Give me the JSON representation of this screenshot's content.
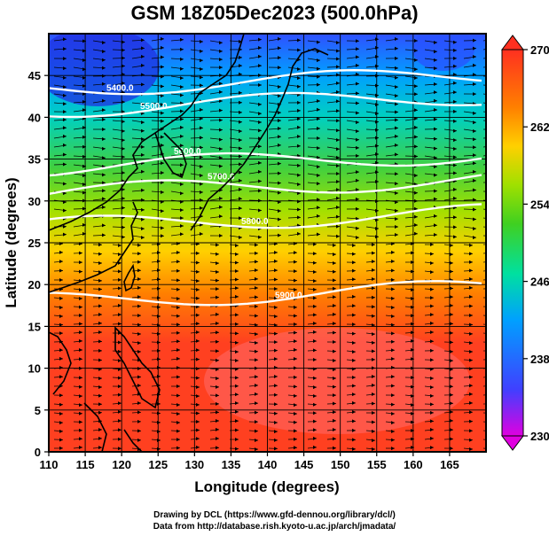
{
  "title": "GSM 18Z05Dec2023 (500.0hPa)",
  "axes": {
    "xlabel": "Longitude (degrees)",
    "ylabel": "Latitude  (degrees)",
    "x_ticks": [
      "110",
      "115",
      "120",
      "125",
      "130",
      "135",
      "140",
      "145",
      "150",
      "155",
      "160",
      "165"
    ],
    "y_ticks": [
      "0",
      "5",
      "10",
      "15",
      "20",
      "25",
      "30",
      "35",
      "40",
      "45"
    ],
    "x_range": [
      110,
      170
    ],
    "y_range": [
      0,
      50
    ]
  },
  "colorbar": {
    "labels": [
      "270",
      "262",
      "254",
      "246",
      "238",
      "230"
    ],
    "range": [
      230,
      270
    ],
    "stops": [
      "#e000e0",
      "#4040ff",
      "#00c0ff",
      "#00e0a0",
      "#40d020",
      "#a0e000",
      "#ffd000",
      "#ff8000",
      "#ff4020",
      "#ff6060"
    ]
  },
  "contours": [
    {
      "label": "5400.0",
      "lat": 43.5
    },
    {
      "label": "5500.0",
      "lat": 41
    },
    {
      "label": "5600.0",
      "lat": 34
    },
    {
      "label": "5700.0",
      "lat": 31
    },
    {
      "label": "5800.0",
      "lat": 27
    },
    {
      "label": "5900.0",
      "lat": 18
    }
  ],
  "credits": {
    "line1": "Drawing by DCL (https://www.gfd-dennou.org/library/dcl/)",
    "line2": "Data from http://database.rish.kyoto-u.ac.jp/arch/jmadata/"
  },
  "colors": {
    "contour": "#ffffff",
    "coast": "#000000",
    "vector": "#000000"
  }
}
